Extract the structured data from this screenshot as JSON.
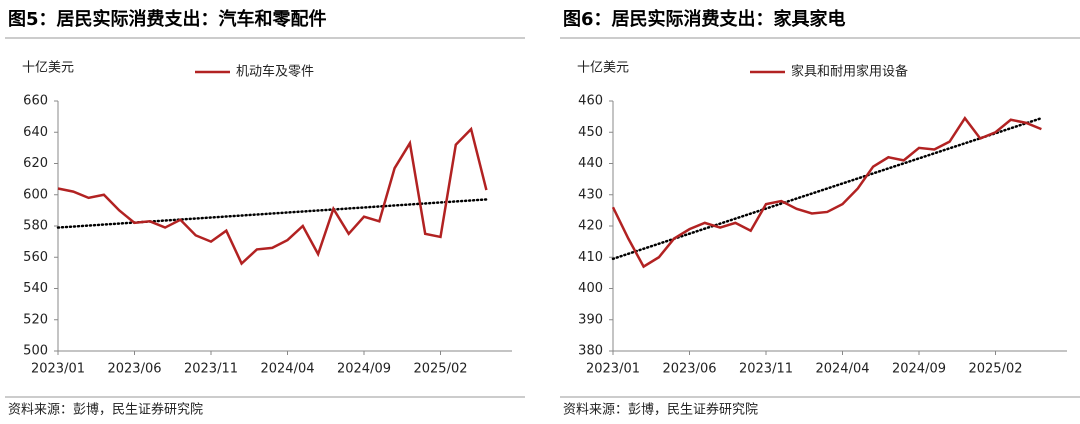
{
  "chart_data": [
    {
      "type": "line",
      "title": "图5：居民实际消费支出：汽车和零配件",
      "unit": "十亿美元",
      "source": "资料来源：彭博，民生证券研究院",
      "categories": [
        "2023/01",
        null,
        null,
        null,
        null,
        "2023/06",
        null,
        null,
        null,
        null,
        "2023/11",
        null,
        null,
        null,
        null,
        "2024/04",
        null,
        null,
        null,
        null,
        "2024/09",
        null,
        null,
        null,
        null,
        "2025/02",
        null,
        null,
        null
      ],
      "series": [
        {
          "name": "机动车及零件",
          "color": "#b22222",
          "values": [
            604,
            602,
            598,
            600,
            590,
            582,
            583,
            579,
            584,
            574,
            570,
            577,
            556,
            565,
            566,
            571,
            580,
            562,
            591,
            575,
            586,
            583,
            617,
            633,
            575,
            573,
            632,
            642,
            603
          ]
        }
      ],
      "trend_values": [
        579,
        597
      ],
      "ylim": [
        500,
        660
      ],
      "yticks": [
        500,
        520,
        540,
        560,
        580,
        600,
        620,
        640,
        660
      ]
    },
    {
      "type": "line",
      "title": "图6：居民实际消费支出：家具家电",
      "unit": "十亿美元",
      "source": "资料来源：彭博，民生证券研究院",
      "categories": [
        "2023/01",
        null,
        null,
        null,
        null,
        "2023/06",
        null,
        null,
        null,
        null,
        "2023/11",
        null,
        null,
        null,
        null,
        "2024/04",
        null,
        null,
        null,
        null,
        "2024/09",
        null,
        null,
        null,
        null,
        "2025/02",
        null,
        null,
        null
      ],
      "series": [
        {
          "name": "家具和耐用家用设备",
          "color": "#b22222",
          "values": [
            426,
            416,
            407,
            410,
            416,
            419,
            421,
            419.5,
            421,
            418.5,
            427,
            428,
            425.5,
            424,
            424.5,
            427,
            432,
            439,
            442,
            441,
            445,
            444.5,
            447,
            454.5,
            448,
            450,
            454,
            453,
            451
          ]
        }
      ],
      "trend_values": [
        409.5,
        454.5
      ],
      "ylim": [
        380,
        460
      ],
      "yticks": [
        380,
        390,
        400,
        410,
        420,
        430,
        440,
        450,
        460
      ]
    }
  ]
}
